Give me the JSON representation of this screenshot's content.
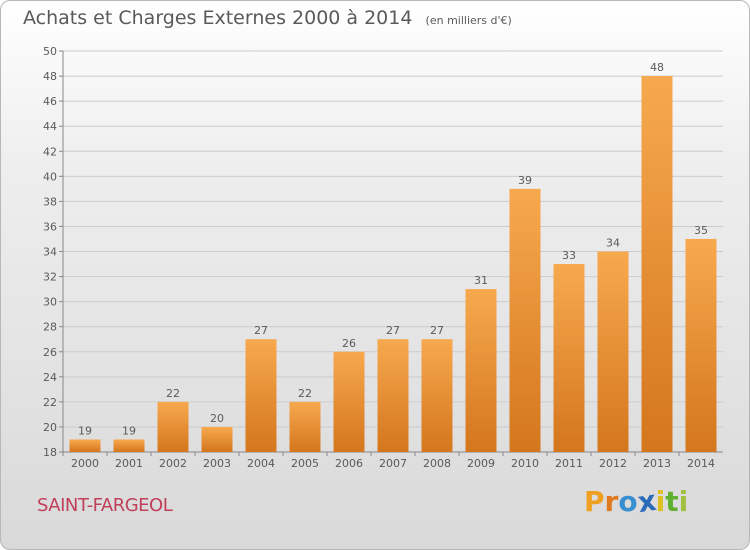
{
  "title": {
    "main": "Achats et Charges Externes 2000 à 2014",
    "sub": "(en milliers d'€)"
  },
  "commune": "SAINT-FARGEOL",
  "logo": {
    "letters": [
      "P",
      "r",
      "o",
      "x",
      "i",
      "t",
      "i"
    ]
  },
  "colors": {
    "bar_light": "#f7a94e",
    "bar_dark": "#d4761d",
    "commune": "#c0405a",
    "text": "#5a5a5a",
    "grid": "#cccccc"
  },
  "chart_data": {
    "type": "bar",
    "categories": [
      "2000",
      "2001",
      "2002",
      "2003",
      "2004",
      "2005",
      "2006",
      "2007",
      "2008",
      "2009",
      "2010",
      "2011",
      "2012",
      "2013",
      "2014"
    ],
    "values": [
      19,
      19,
      22,
      20,
      27,
      22,
      26,
      27,
      27,
      31,
      39,
      33,
      34,
      48,
      35
    ],
    "ylim": [
      18,
      50
    ],
    "yticks": [
      18,
      20,
      22,
      24,
      26,
      28,
      30,
      32,
      34,
      36,
      38,
      40,
      42,
      44,
      46,
      48,
      50
    ],
    "grid": true
  }
}
